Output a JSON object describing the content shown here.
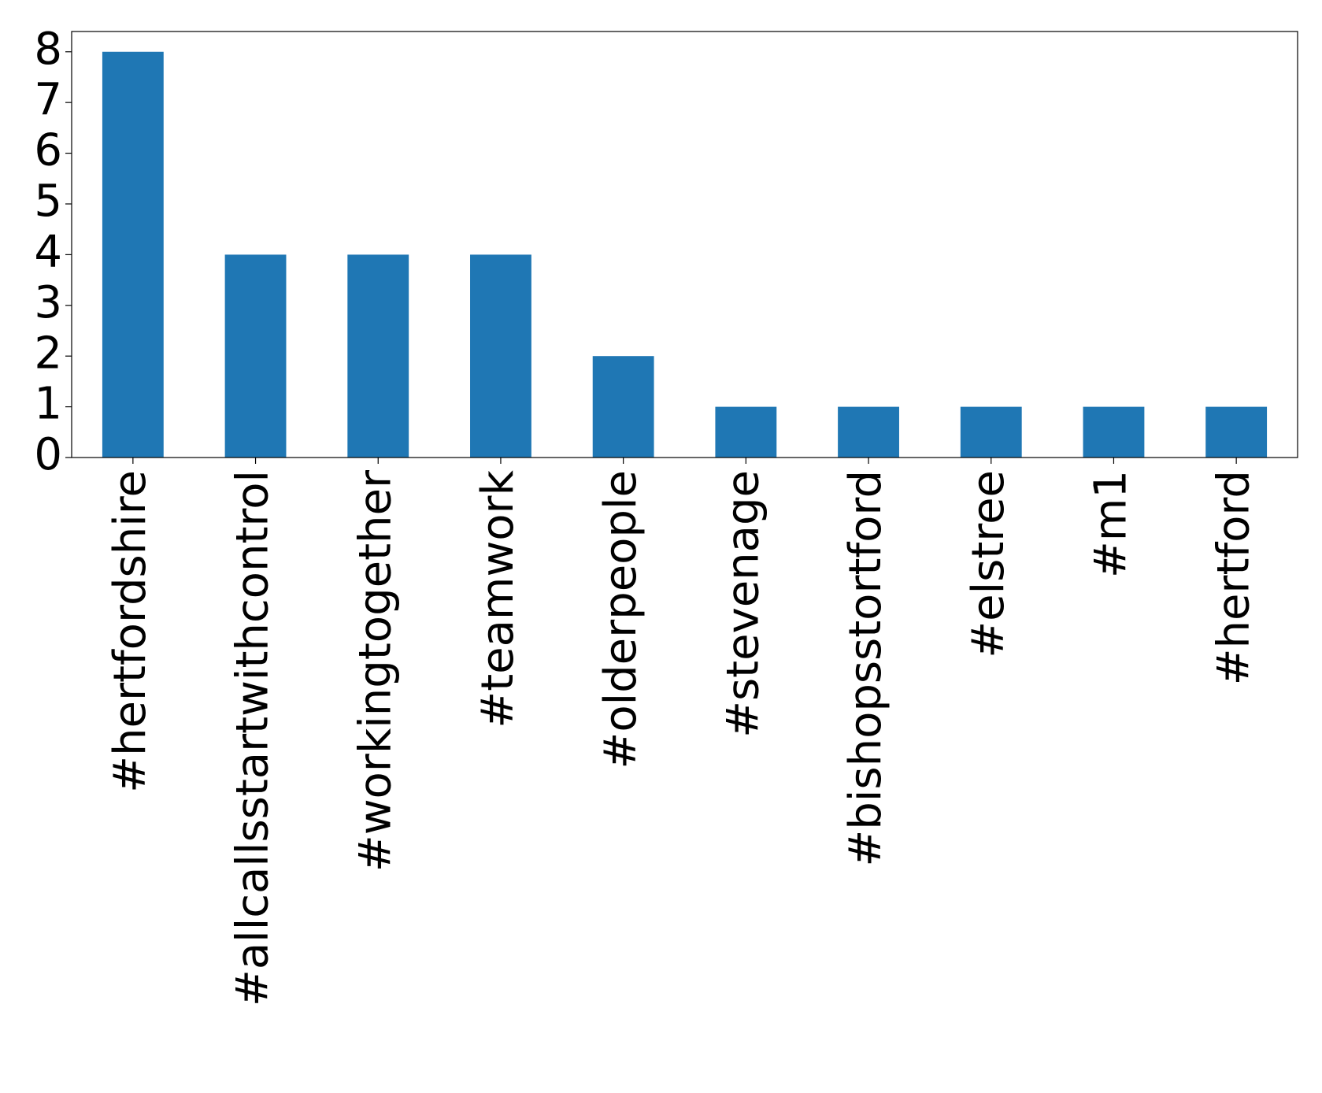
{
  "chart_data": {
    "type": "bar",
    "categories": [
      "#hertfordshire",
      "#allcallsstartwithcontrol",
      "#workingtogether",
      "#teamwork",
      "#olderpeople",
      "#stevenage",
      "#bishopsstortford",
      "#elstree",
      "#m1",
      "#hertford"
    ],
    "values": [
      8,
      4,
      4,
      4,
      2,
      1,
      1,
      1,
      1,
      1
    ],
    "color": "#1f77b4",
    "ylim": [
      0,
      8.4
    ],
    "yticks": [
      0,
      1,
      2,
      3,
      4,
      5,
      6,
      7,
      8
    ],
    "grid": false
  }
}
